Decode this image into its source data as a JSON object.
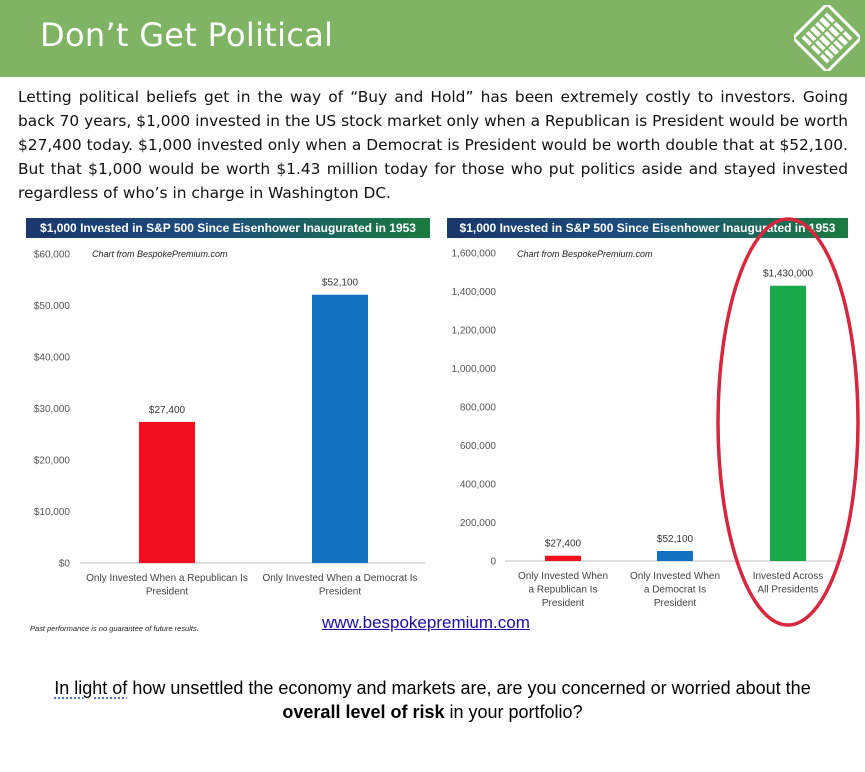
{
  "header": {
    "title": "Don’t Get Political"
  },
  "intro_text": "Letting political beliefs get in the way of “Buy and Hold” has been extremely costly to investors.  Going back 70 years, $1,000 invested in the US stock market only when a Republican is President would be worth $27,400 today.  $1,000 invested only when a Democrat is President would be worth double that at $52,100.  But that $1,000 would be worth $1.43 million today for those who put politics aside and stayed invested regardless of who’s in charge in Washington DC.",
  "footnote": "Past performance is no guarantee of future results.",
  "url": "www.bespokepremium.com",
  "question": {
    "part1": "In light of",
    "part2": " how unsettled the economy and markets are, are you concerned or worried about the ",
    "bold": "overall level of risk",
    "part3": " in your portfolio?"
  },
  "colors": {
    "header_bg": "#7fb464",
    "republican": "#f01020",
    "democrat": "#1470c0",
    "all": "#1aa84a",
    "circle": "#d7263d"
  },
  "chart_data": [
    {
      "type": "bar",
      "title": "$1,000 Invested in S&P 500 Since Eisenhower Inaugurated in 1953",
      "source": "Chart from BespokePremium.com",
      "categories": [
        "Only Invested When a Republican Is President",
        "Only Invested When a Democrat Is President"
      ],
      "values": [
        27400,
        52100
      ],
      "data_labels": [
        "$27,400",
        "$52,100"
      ],
      "bar_colors": [
        "#f01020",
        "#1470c0"
      ],
      "ylim": [
        0,
        60000
      ],
      "yticks": [
        0,
        10000,
        20000,
        30000,
        40000,
        50000,
        60000
      ],
      "ytick_labels": [
        "$0",
        "$10,000",
        "$20,000",
        "$30,000",
        "$40,000",
        "$50,000",
        "$60,000"
      ],
      "xlabel": "",
      "ylabel": "",
      "grid": false
    },
    {
      "type": "bar",
      "title": "$1,000 Invested in S&P 500 Since Eisenhower Inaugurated in 1953",
      "source": "Chart from BespokePremium.com",
      "categories": [
        "Only Invested When a Republican Is President",
        "Only Invested When a Democrat Is President",
        "Invested Across All Presidents"
      ],
      "values": [
        27400,
        52100,
        1430000
      ],
      "data_labels": [
        "$27,400",
        "$52,100",
        "$1,430,000"
      ],
      "bar_colors": [
        "#f01020",
        "#1470c0",
        "#1aa84a"
      ],
      "ylim": [
        0,
        1600000
      ],
      "yticks": [
        0,
        200000,
        400000,
        600000,
        800000,
        1000000,
        1200000,
        1400000,
        1600000
      ],
      "ytick_labels": [
        "0",
        "200,000",
        "400,000",
        "600,000",
        "800,000",
        "1,000,000",
        "1,200,000",
        "1,400,000",
        "1,600,000"
      ],
      "xlabel": "",
      "ylabel": "",
      "grid": false,
      "highlight_index": 2
    }
  ]
}
